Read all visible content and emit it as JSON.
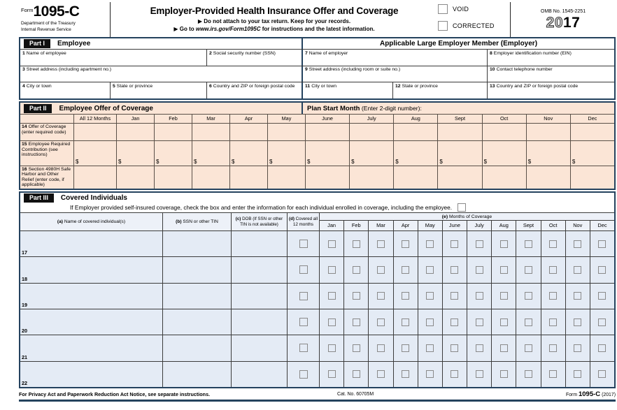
{
  "header": {
    "form_word": "Form",
    "form_number": "1095-C",
    "dept_line1": "Department of the Treasury",
    "dept_line2": "Internal Revenue Service",
    "title": "Employer-Provided Health Insurance Offer and Coverage",
    "subtitle1": "▶ Do not attach to your tax return. Keep for your records.",
    "subtitle2_prefix": "▶ Go to ",
    "subtitle2_url": "www.irs.gov/Form1095C",
    "subtitle2_suffix": " for instructions and the latest information.",
    "void_label": "VOID",
    "corrected_label": "CORRECTED",
    "omb": "OMB No. 1545-2251",
    "year_outline": "20",
    "year_bold": "17"
  },
  "part1": {
    "label": "Part I",
    "left_title": "Employee",
    "right_title": "Applicable Large Employer Member (Employer)",
    "fields": {
      "name": {
        "n": "1",
        "t": "Name of employee"
      },
      "ssn": {
        "n": "2",
        "t": "Social security number (SSN)"
      },
      "street": {
        "n": "3",
        "t": "Street address (including apartment no.)"
      },
      "city": {
        "n": "4",
        "t": "City or town"
      },
      "state": {
        "n": "5",
        "t": "State or province"
      },
      "country": {
        "n": "6",
        "t": "Country and ZIP or foreign postal code"
      },
      "emp_name": {
        "n": "7",
        "t": "Name of employer"
      },
      "ein": {
        "n": "8",
        "t": "Employer identification number (EIN)"
      },
      "emp_street": {
        "n": "9",
        "t": "Street address (including room or suite no.)"
      },
      "phone": {
        "n": "10",
        "t": "Contact telephone number"
      },
      "emp_city": {
        "n": "11",
        "t": "City or town"
      },
      "emp_state": {
        "n": "12",
        "t": "State or province"
      },
      "emp_country": {
        "n": "13",
        "t": "Country and ZIP or foreign postal code"
      }
    }
  },
  "part2": {
    "label": "Part II",
    "title": "Employee Offer of Coverage",
    "plan_start_bold": "Plan Start Month",
    "plan_start_rest": " (Enter 2-digit number):",
    "columns": [
      "All 12 Months",
      "Jan",
      "Feb",
      "Mar",
      "Apr",
      "May",
      "June",
      "July",
      "Aug",
      "Sept",
      "Oct",
      "Nov",
      "Dec"
    ],
    "rows": [
      {
        "n": "14",
        "t": "Offer of Coverage (enter required code)",
        "dollar": false
      },
      {
        "n": "15",
        "t": "Employee Required Contribution (see instructions)",
        "dollar": true
      },
      {
        "n": "16",
        "t": "Section 4980H Safe Harbor and Other Relief (enter code, if applicable)",
        "dollar": false
      }
    ],
    "dollar_sign": "$"
  },
  "part3": {
    "label": "Part III",
    "title": "Covered Individuals",
    "instruction": "If Employer provided self-insured coverage, check the box and enter the information for each individual enrolled in coverage, including the employee.",
    "col_a_bold": "(a)",
    "col_a": "Name of covered individual(s)",
    "col_b_bold": "(b)",
    "col_b": "SSN or other TIN",
    "col_c_bold": "(c)",
    "col_c": "DOB (If SSN or other TIN is not available)",
    "col_d_bold": "(d)",
    "col_d": "Covered all 12 months",
    "col_e_bold": "(e)",
    "col_e": "Months of Coverage",
    "months": [
      "Jan",
      "Feb",
      "Mar",
      "Apr",
      "May",
      "June",
      "July",
      "Aug",
      "Sept",
      "Oct",
      "Nov",
      "Dec"
    ],
    "row_numbers": [
      "17",
      "18",
      "19",
      "20",
      "21",
      "22"
    ]
  },
  "footer": {
    "privacy": "For Privacy Act and Paperwork Reduction Act Notice, see separate instructions.",
    "cat": "Cat. No. 60705M",
    "form_word": "Form",
    "form_number": "1095-C",
    "year": "(2017)"
  },
  "colors": {
    "navy_border": "#24425e",
    "part2_fill": "#fbe5d6",
    "part3_fill": "#e4ebf5",
    "part_label_fill": "#101010"
  }
}
